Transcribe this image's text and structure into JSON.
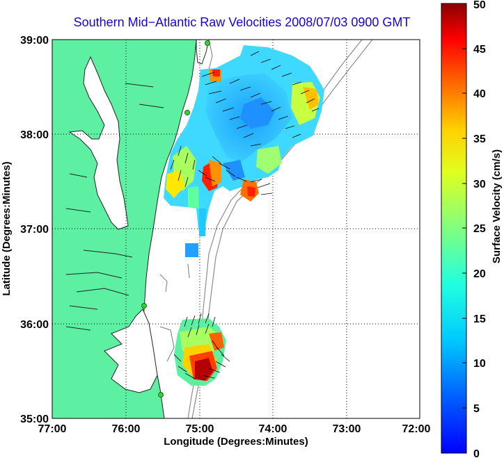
{
  "title": "Southern Mid−Atlantic Raw Velocities 2008/07/03 0900 GMT",
  "map": {
    "xlabel": "Longitude (Degrees:Minutes)",
    "ylabel": "Latitude (Degrees:Minutes)",
    "lon_range": [
      -77,
      -72
    ],
    "lat_range": [
      35,
      39
    ],
    "x_ticks": [
      "77:00",
      "76:00",
      "75:00",
      "74:00",
      "73:00",
      "72:00"
    ],
    "y_ticks": [
      "39:00",
      "38:00",
      "37:00",
      "36:00",
      "35:00"
    ],
    "grid": "dotted",
    "land_color": "#5ef0a2",
    "ocean_color": "#ffffff",
    "coastline_color": "#1c1c1c",
    "bathymetry_color": "#8c8c8c"
  },
  "colorbar": {
    "label": "Surface Velocity (cm/s)",
    "ticks": [
      "0",
      "5",
      "10",
      "15",
      "20",
      "25",
      "30",
      "35",
      "40",
      "45",
      "50"
    ],
    "range": [
      0,
      50
    ],
    "colormap": "jet"
  },
  "chart_data": {
    "type": "heatmap",
    "variable": "surface current speed (cm/s) with direction vectors",
    "stations_icon": "green-station-dots"
  }
}
